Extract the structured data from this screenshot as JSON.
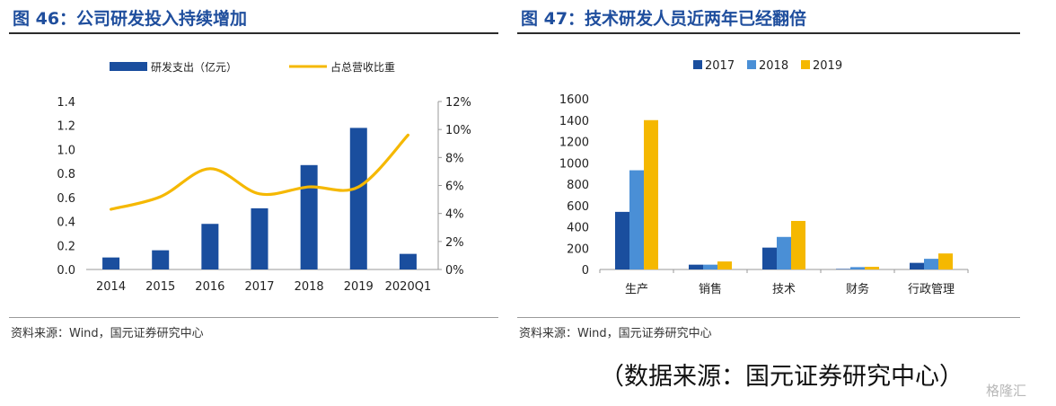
{
  "left": {
    "title": "图 46：公司研发投入持续增加",
    "source": "资料来源：Wind，国元证券研究中心",
    "chart_data": {
      "type": "bar",
      "categories": [
        "2014",
        "2015",
        "2016",
        "2017",
        "2018",
        "2019",
        "2020Q1"
      ],
      "series": [
        {
          "name": "研发支出（亿元）",
          "type": "bar",
          "axis": "left",
          "color": "#1a4e9e",
          "values": [
            0.1,
            0.16,
            0.38,
            0.51,
            0.87,
            1.18,
            0.13
          ]
        },
        {
          "name": "占总营收比重",
          "type": "line",
          "axis": "right",
          "color": "#f5b800",
          "values": [
            4.3,
            5.2,
            7.2,
            5.4,
            5.9,
            5.9,
            9.6
          ]
        }
      ],
      "ylim": [
        0,
        1.4
      ],
      "yticks": [
        "0.0",
        "0.2",
        "0.4",
        "0.6",
        "0.8",
        "1.0",
        "1.2",
        "1.4"
      ],
      "y2lim": [
        0,
        12
      ],
      "y2ticks": [
        "0%",
        "2%",
        "4%",
        "6%",
        "8%",
        "10%",
        "12%"
      ],
      "legend": "top-center",
      "grid": false
    }
  },
  "right": {
    "title": "图 47：技术研发人员近两年已经翻倍",
    "source": "资料来源：Wind，国元证券研究中心",
    "chart_data": {
      "type": "bar",
      "categories": [
        "生产",
        "销售",
        "技术",
        "财务",
        "行政管理"
      ],
      "series": [
        {
          "name": "2017",
          "color": "#1a4e9e",
          "values": [
            540,
            45,
            205,
            5,
            62
          ]
        },
        {
          "name": "2018",
          "color": "#4a8fd6",
          "values": [
            930,
            45,
            305,
            22,
            100
          ]
        },
        {
          "name": "2019",
          "color": "#f5b800",
          "values": [
            1400,
            75,
            455,
            25,
            150
          ]
        }
      ],
      "ylim": [
        0,
        1600
      ],
      "yticks": [
        "0",
        "200",
        "400",
        "600",
        "800",
        "1000",
        "1200",
        "1400",
        "1600"
      ],
      "legend": "top-center",
      "grid": false
    }
  },
  "footer_note": "（数据来源：国元证券研究中心）",
  "watermark": "格隆汇"
}
